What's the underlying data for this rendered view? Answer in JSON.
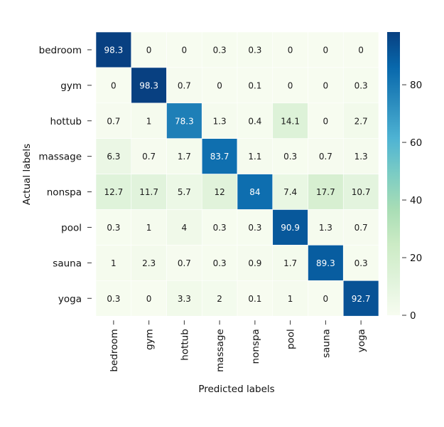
{
  "chart_data": {
    "type": "heatmap",
    "title": "",
    "xlabel": "Predicted labels",
    "ylabel": "Actual labels",
    "x_categories": [
      "bedroom",
      "gym",
      "hottub",
      "massage",
      "nonspa",
      "pool",
      "sauna",
      "yoga"
    ],
    "y_categories": [
      "bedroom",
      "gym",
      "hottub",
      "massage",
      "nonspa",
      "pool",
      "sauna",
      "yoga"
    ],
    "values": [
      [
        98.3,
        0,
        0,
        0.3,
        0.3,
        0,
        0,
        0
      ],
      [
        0,
        98.3,
        0.7,
        0,
        0.1,
        0,
        0,
        0.3
      ],
      [
        0.7,
        1,
        78.3,
        1.3,
        0.4,
        14.1,
        0,
        2.7
      ],
      [
        6.3,
        0.7,
        1.7,
        83.7,
        1.1,
        0.3,
        0.7,
        1.3
      ],
      [
        12.7,
        11.7,
        5.7,
        12,
        84,
        7.4,
        17.7,
        10.7
      ],
      [
        0.3,
        1,
        4,
        0.3,
        0.3,
        90.9,
        1.3,
        0.7
      ],
      [
        1,
        2.3,
        0.7,
        0.3,
        0.9,
        1.7,
        89.3,
        0.3
      ],
      [
        0.3,
        0,
        3.3,
        2,
        0.1,
        1,
        0,
        92.7
      ]
    ],
    "colormap": "GnBu",
    "vmin": 0,
    "vmax": 98.3,
    "colorbar": {
      "ticks": [
        0,
        20,
        40,
        60,
        80
      ],
      "position": "right"
    },
    "grid": false,
    "cell_separator_color": "#ffffff"
  }
}
